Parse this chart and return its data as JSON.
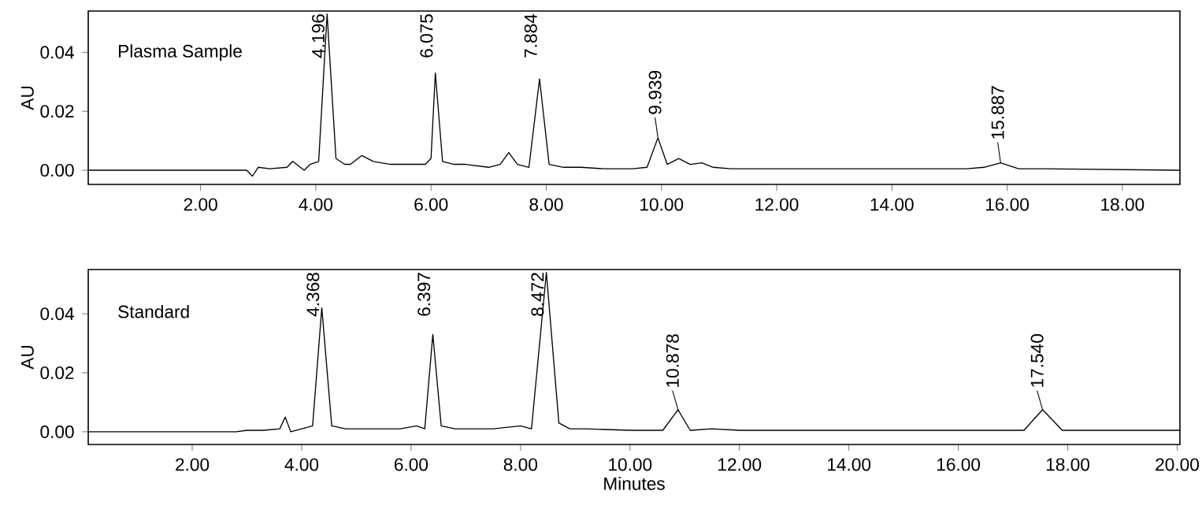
{
  "chart_data": [
    {
      "type": "line",
      "title": "Plasma Sample",
      "ylabel": "AU",
      "color": "#000000",
      "x": [
        0.05,
        1,
        2,
        2.8,
        2.9,
        3.0,
        3.2,
        3.5,
        3.6,
        3.7,
        3.8,
        3.9,
        4.05,
        4.196,
        4.35,
        4.5,
        4.6,
        4.8,
        5.0,
        5.3,
        5.6,
        5.9,
        6.0,
        6.075,
        6.2,
        6.4,
        6.6,
        7.0,
        7.2,
        7.35,
        7.5,
        7.7,
        7.884,
        8.05,
        8.3,
        8.6,
        9.0,
        9.5,
        9.75,
        9.939,
        10.1,
        10.3,
        10.5,
        10.7,
        10.9,
        11.2,
        12,
        14,
        15.3,
        15.6,
        15.887,
        16.2,
        16.6,
        19.0
      ],
      "values": [
        0,
        0,
        0,
        0,
        -0.002,
        0.001,
        0.0005,
        0.001,
        0.003,
        0.0015,
        0,
        0.002,
        0.003,
        0.053,
        0.004,
        0.002,
        0.002,
        0.005,
        0.003,
        0.002,
        0.002,
        0.002,
        0.004,
        0.033,
        0.003,
        0.002,
        0.002,
        0.001,
        0.002,
        0.006,
        0.002,
        0.001,
        0.031,
        0.002,
        0.001,
        0.001,
        0.0005,
        0.0005,
        0.001,
        0.011,
        0.002,
        0.004,
        0.002,
        0.0025,
        0.001,
        0.0005,
        0.0005,
        0.0005,
        0.0005,
        0.001,
        0.0025,
        0.0005,
        0.0005,
        0
      ],
      "xlim": [
        0.05,
        19.0
      ],
      "ylim": [
        -0.0048,
        0.054
      ],
      "xticks": [
        {
          "value": 2,
          "label": "2.00"
        },
        {
          "value": 4,
          "label": "4.00"
        },
        {
          "value": 6,
          "label": "6.00"
        },
        {
          "value": 8,
          "label": "8.00"
        },
        {
          "value": 10,
          "label": "10.00"
        },
        {
          "value": 12,
          "label": "12.00"
        },
        {
          "value": 14,
          "label": "14.00"
        },
        {
          "value": 16,
          "label": "16.00"
        },
        {
          "value": 18,
          "label": "18.00"
        }
      ],
      "yticks": [
        {
          "value": 0,
          "label": "0.00"
        },
        {
          "value": 0.02,
          "label": "0.02"
        },
        {
          "value": 0.04,
          "label": "0.04"
        }
      ],
      "annotations": [
        {
          "text": "4.196",
          "x": 4.196,
          "y": 0.053
        },
        {
          "text": "6.075",
          "x": 6.075,
          "y": 0.033
        },
        {
          "text": "7.884",
          "x": 7.884,
          "y": 0.031
        },
        {
          "text": "9.939",
          "x": 9.939,
          "y": 0.011
        },
        {
          "text": "15.887",
          "x": 15.887,
          "y": 0.0025
        }
      ]
    },
    {
      "type": "line",
      "title": "Standard",
      "xlabel": "Minutes",
      "ylabel": "AU",
      "color": "#000000",
      "x": [
        0.1,
        1,
        2,
        2.8,
        3.0,
        3.3,
        3.6,
        3.7,
        3.8,
        4.0,
        4.2,
        4.368,
        4.55,
        4.8,
        5.2,
        5.8,
        6.1,
        6.25,
        6.397,
        6.55,
        6.8,
        7.5,
        8.0,
        8.2,
        8.472,
        8.7,
        8.9,
        9.2,
        10.0,
        10.6,
        10.878,
        11.1,
        11.5,
        12,
        14,
        16,
        17.2,
        17.54,
        17.9,
        19,
        20.05
      ],
      "values": [
        0,
        0,
        0,
        0,
        0.0005,
        0.0005,
        0.001,
        0.005,
        0,
        0.001,
        0.002,
        0.042,
        0.002,
        0.001,
        0.001,
        0.001,
        0.002,
        0.001,
        0.033,
        0.002,
        0.001,
        0.001,
        0.002,
        0.001,
        0.054,
        0.003,
        0.001,
        0.001,
        0.0005,
        0.0005,
        0.0075,
        0.0005,
        0.001,
        0.0005,
        0.0005,
        0.0005,
        0.0005,
        0.0075,
        0.0005,
        0.0005,
        0.0005
      ],
      "xlim": [
        0.1,
        20.05
      ],
      "ylim": [
        -0.0043,
        0.055
      ],
      "xticks": [
        {
          "value": 2,
          "label": "2.00"
        },
        {
          "value": 4,
          "label": "4.00"
        },
        {
          "value": 6,
          "label": "6.00"
        },
        {
          "value": 8,
          "label": "8.00"
        },
        {
          "value": 10,
          "label": "10.00"
        },
        {
          "value": 12,
          "label": "12.00"
        },
        {
          "value": 14,
          "label": "14.00"
        },
        {
          "value": 16,
          "label": "16.00"
        },
        {
          "value": 18,
          "label": "18.00"
        },
        {
          "value": 20,
          "label": "20.00"
        }
      ],
      "yticks": [
        {
          "value": 0,
          "label": "0.00"
        },
        {
          "value": 0.02,
          "label": "0.02"
        },
        {
          "value": 0.04,
          "label": "0.04"
        }
      ],
      "annotations": [
        {
          "text": "4.368",
          "x": 4.368,
          "y": 0.042
        },
        {
          "text": "6.397",
          "x": 6.397,
          "y": 0.033
        },
        {
          "text": "8.472",
          "x": 8.472,
          "y": 0.054
        },
        {
          "text": "10.878",
          "x": 10.878,
          "y": 0.0075
        },
        {
          "text": "17.540",
          "x": 17.54,
          "y": 0.0075
        }
      ]
    }
  ]
}
